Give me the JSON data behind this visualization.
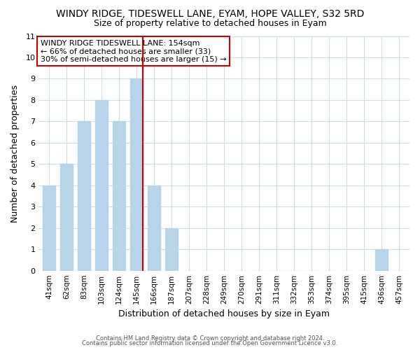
{
  "title": "WINDY RIDGE, TIDESWELL LANE, EYAM, HOPE VALLEY, S32 5RD",
  "subtitle": "Size of property relative to detached houses in Eyam",
  "xlabel": "Distribution of detached houses by size in Eyam",
  "ylabel": "Number of detached properties",
  "bar_labels": [
    "41sqm",
    "62sqm",
    "83sqm",
    "103sqm",
    "124sqm",
    "145sqm",
    "166sqm",
    "187sqm",
    "207sqm",
    "228sqm",
    "249sqm",
    "270sqm",
    "291sqm",
    "311sqm",
    "332sqm",
    "353sqm",
    "374sqm",
    "395sqm",
    "415sqm",
    "436sqm",
    "457sqm"
  ],
  "bar_values": [
    4,
    5,
    7,
    8,
    7,
    9,
    4,
    2,
    0,
    0,
    0,
    0,
    0,
    0,
    0,
    0,
    0,
    0,
    0,
    1,
    0
  ],
  "bar_color": "#b8d4e8",
  "highlight_bar_index": 5,
  "highlight_line_color": "#cc0000",
  "ylim": [
    0,
    11
  ],
  "yticks": [
    0,
    1,
    2,
    3,
    4,
    5,
    6,
    7,
    8,
    9,
    10,
    11
  ],
  "annotation_line1": "WINDY RIDGE TIDESWELL LANE: 154sqm",
  "annotation_line2": "← 66% of detached houses are smaller (33)",
  "annotation_line3": "30% of semi-detached houses are larger (15) →",
  "footer_line1": "Contains HM Land Registry data © Crown copyright and database right 2024.",
  "footer_line2": "Contains public sector information licensed under the Open Government Licence v3.0.",
  "grid_color": "#ccdfe8",
  "background_color": "#ffffff"
}
